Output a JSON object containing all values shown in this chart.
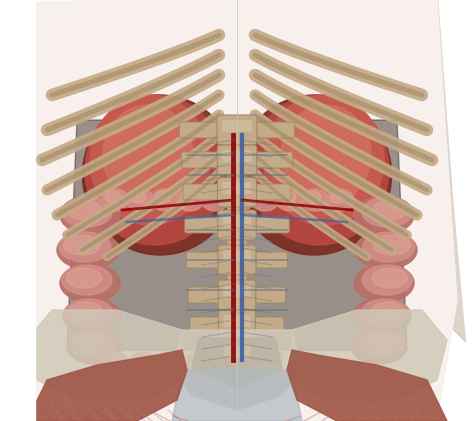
{
  "bg_color": "#ffffff",
  "fig_width": 4.74,
  "fig_height": 4.21,
  "dpi": 100,
  "spine_color": "#c4aa88",
  "spine_dark": "#a08860",
  "rib_color": "#c4aa88",
  "rib_dark": "#907850",
  "kidney_color": "#b84840",
  "kidney_mid": "#c85c50",
  "kidney_light": "#d07060",
  "intestine_color": "#d4908a",
  "intestine_light": "#e0a898",
  "intestine_dark": "#b87068",
  "muscle_color": "#a05848",
  "muscle_light": "#c07060",
  "muscle_stripe": "#884038",
  "pelvis_color": "#b8b0a0",
  "pelvis_light": "#d0c8b8",
  "vessel_blue": "#4060a0",
  "vessel_red": "#900000",
  "vessel_gray": "#607080",
  "bg_body": "#f8f0ec",
  "white": "#ffffff",
  "shadow": "#2a2020"
}
